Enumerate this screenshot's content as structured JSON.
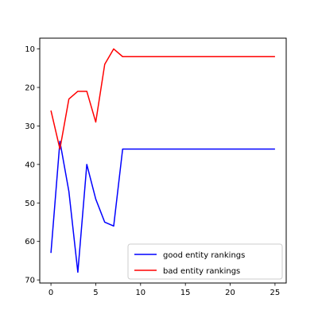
{
  "chart_data": {
    "type": "line",
    "title": "",
    "xlabel": "",
    "ylabel": "",
    "xlim": [
      -1.25,
      26.25
    ],
    "ylim": [
      70.8,
      7.2
    ],
    "y_inverted": true,
    "grid": false,
    "legend_placement": "lower right",
    "x_ticks": [
      0,
      5,
      10,
      15,
      20,
      25
    ],
    "y_ticks": [
      10,
      20,
      30,
      40,
      50,
      60,
      70
    ],
    "series": [
      {
        "name": "good entity rankings",
        "color": "#0000ff",
        "x": [
          0,
          1,
          2,
          3,
          4,
          5,
          6,
          7,
          8,
          9,
          10,
          11,
          12,
          13,
          14,
          15,
          16,
          17,
          18,
          19,
          20,
          21,
          22,
          23,
          24,
          25
        ],
        "values": [
          63,
          34,
          47,
          68,
          40,
          49,
          55,
          56,
          36,
          36,
          36,
          36,
          36,
          36,
          36,
          36,
          36,
          36,
          36,
          36,
          36,
          36,
          36,
          36,
          36,
          36
        ]
      },
      {
        "name": "bad entity rankings",
        "color": "#ff0000",
        "x": [
          0,
          1,
          2,
          3,
          4,
          5,
          6,
          7,
          8,
          9,
          10,
          11,
          12,
          13,
          14,
          15,
          16,
          17,
          18,
          19,
          20,
          21,
          22,
          23,
          24,
          25
        ],
        "values": [
          26,
          36,
          23,
          21,
          21,
          29,
          14,
          10,
          12,
          12,
          12,
          12,
          12,
          12,
          12,
          12,
          12,
          12,
          12,
          12,
          12,
          12,
          12,
          12,
          12,
          12
        ]
      }
    ]
  }
}
